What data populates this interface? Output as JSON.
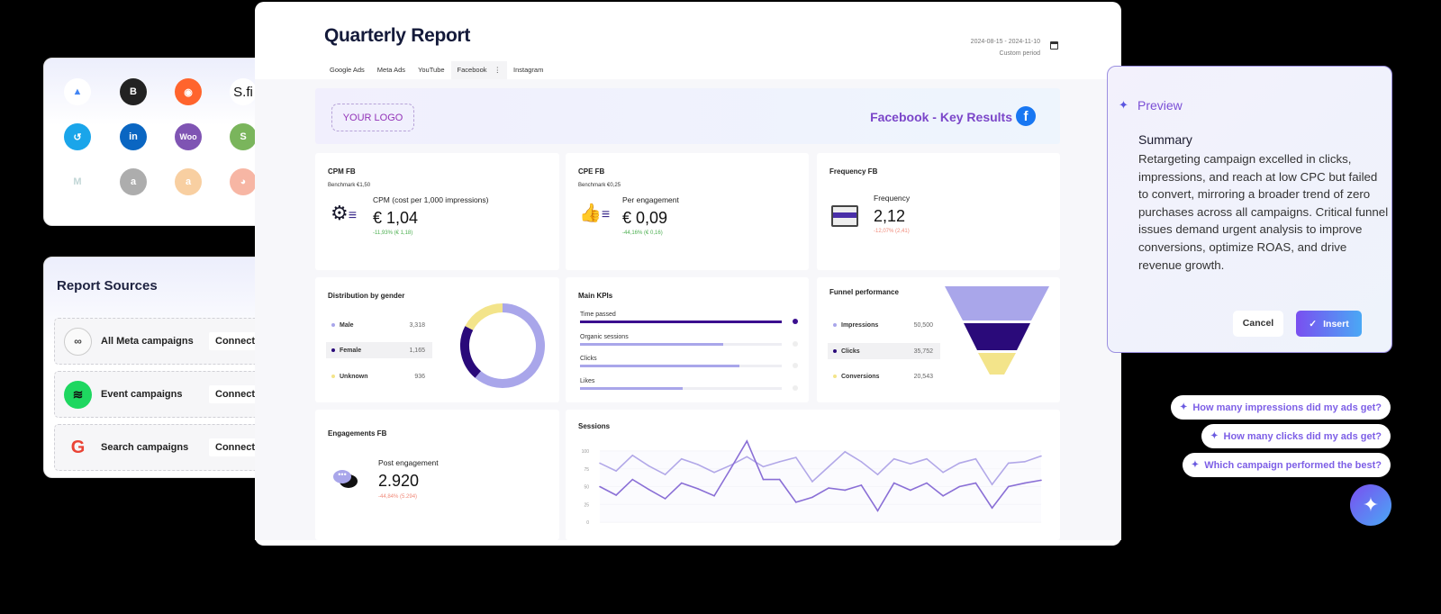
{
  "report": {
    "title": "Quarterly Report",
    "date_range": "2024-08-15 - 2024-11-10",
    "period": "Custom period",
    "tabs": [
      "Google Ads",
      "Meta Ads",
      "YouTube",
      "Facebook",
      "Instagram"
    ],
    "active_tab": "Facebook"
  },
  "banner": {
    "logo_placeholder": "YOUR LOGO",
    "heading": "Facebook - Key Results"
  },
  "cpm": {
    "title": "CPM FB",
    "benchmark": "Benchmark €1,50",
    "label": "CPM (cost per 1,000 impressions)",
    "value": "€ 1,04",
    "delta": "-11,93% (€ 1,18)"
  },
  "cpe": {
    "title": "CPE FB",
    "benchmark": "Benchmark €0,25",
    "label": "Per engagement",
    "value": "€ 0,09",
    "delta": "-44,16% (€ 0,16)"
  },
  "frequency": {
    "title": "Frequency FB",
    "label": "Frequency",
    "value": "2,12",
    "delta": "-12,07% (2,41)"
  },
  "gender": {
    "title": "Distribution by gender",
    "items": [
      {
        "label": "Male",
        "value": "3,318",
        "num": 3318,
        "color": "#a9a6ea"
      },
      {
        "label": "Female",
        "value": "1,165",
        "num": 1165,
        "color": "#2a0a7a"
      },
      {
        "label": "Unknown",
        "value": "936",
        "num": 936,
        "color": "#f3e48a"
      }
    ]
  },
  "kpis": {
    "title": "Main KPIs",
    "items": [
      {
        "label": "Time passed",
        "fill": 1.0
      },
      {
        "label": "Organic sessions",
        "fill": 0.71
      },
      {
        "label": "Clicks",
        "fill": 0.79
      },
      {
        "label": "Likes",
        "fill": 0.51
      }
    ]
  },
  "funnel": {
    "title": "Funnel performance",
    "items": [
      {
        "label": "Impressions",
        "value": "50,500",
        "color": "#a9a6ea"
      },
      {
        "label": "Clicks",
        "value": "35,752",
        "color": "#2a0a7a"
      },
      {
        "label": "Conversions",
        "value": "20,543",
        "color": "#f3e48a"
      }
    ]
  },
  "engagements": {
    "title": "Engagements FB",
    "label": "Post engagement",
    "value": "2.920",
    "delta": "-44,84% (5.294)"
  },
  "chart_data": {
    "type": "line",
    "title": "Sessions",
    "ylim": [
      0,
      100
    ],
    "yticks": [
      "100",
      "75",
      "50",
      "25",
      "0"
    ],
    "grid": true,
    "series": [
      {
        "color": "#b2a8e8",
        "values": [
          83,
          72,
          94,
          79,
          67,
          89,
          81,
          70,
          80,
          92,
          78,
          85,
          91,
          57,
          78,
          99,
          85,
          67,
          89,
          82,
          89,
          70,
          83,
          89,
          53,
          83,
          85,
          93
        ]
      },
      {
        "color": "#8a6fd6",
        "values": [
          50,
          38,
          60,
          46,
          33,
          55,
          47,
          37,
          75,
          114,
          60,
          60,
          28,
          35,
          48,
          45,
          52,
          16,
          55,
          45,
          55,
          37,
          50,
          55,
          20,
          50,
          55,
          59
        ]
      }
    ]
  },
  "integrations": {
    "icons": [
      "google-ads",
      "bigcommerce",
      "semrush",
      "sfi",
      "callrail",
      "linkedin-ads",
      "woocommerce",
      "shopify",
      "make",
      "amazon",
      "amazon-alt",
      "reddit"
    ],
    "sfi_text": "S.fi",
    "woo_text": "Woo"
  },
  "sources": {
    "title": "Report Sources",
    "items": [
      {
        "name": "All Meta campaigns",
        "button": "Connect"
      },
      {
        "name": "Event campaigns",
        "button": "Connect"
      },
      {
        "name": "Search campaigns",
        "button": "Connect"
      }
    ]
  },
  "preview": {
    "title": "Preview",
    "heading": "Summary",
    "body": "Retargeting campaign excelled in clicks, impressions, and reach at low CPC but failed to convert, mirroring a broader trend of zero purchases across all campaigns. Critical funnel issues demand urgent analysis to improve conversions, optimize ROAS, and drive revenue growth.",
    "cancel": "Cancel",
    "insert": "Insert"
  },
  "suggestions": [
    "How many impressions did my ads get?",
    "How many clicks did my ads get?",
    "Which campaign performed the best?"
  ]
}
